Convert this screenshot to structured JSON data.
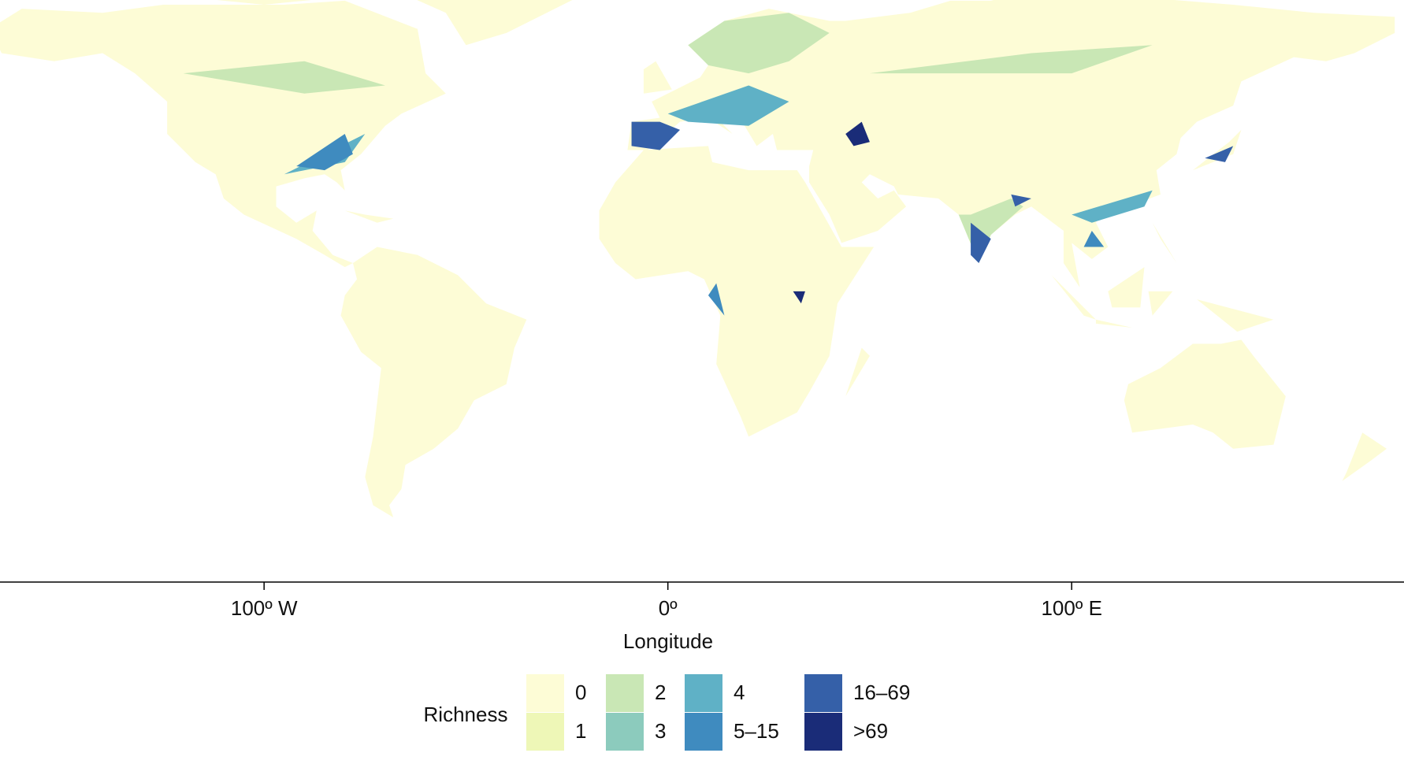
{
  "chart_data": {
    "type": "map",
    "xlabel": "Longitude",
    "xlim": [
      -165.4,
      182.3
    ],
    "xticks": [
      {
        "value": -100,
        "label": "100º W"
      },
      {
        "value": 0,
        "label": "0º"
      },
      {
        "value": 100,
        "label": "100º E"
      }
    ],
    "legend": {
      "title": "Richness",
      "items": [
        {
          "label": "0",
          "color": "#fdfcd6"
        },
        {
          "label": "1",
          "color": "#eef7b7"
        },
        {
          "label": "2",
          "color": "#c9e7b5"
        },
        {
          "label": "3",
          "color": "#8ccbbd"
        },
        {
          "label": "4",
          "color": "#5fb1c6"
        },
        {
          "label": "5–15",
          "color": "#3f8bbf"
        },
        {
          "label": "16–69",
          "color": "#3560a8"
        },
        {
          "label": ">69",
          "color": "#1a2c78"
        }
      ]
    }
  }
}
